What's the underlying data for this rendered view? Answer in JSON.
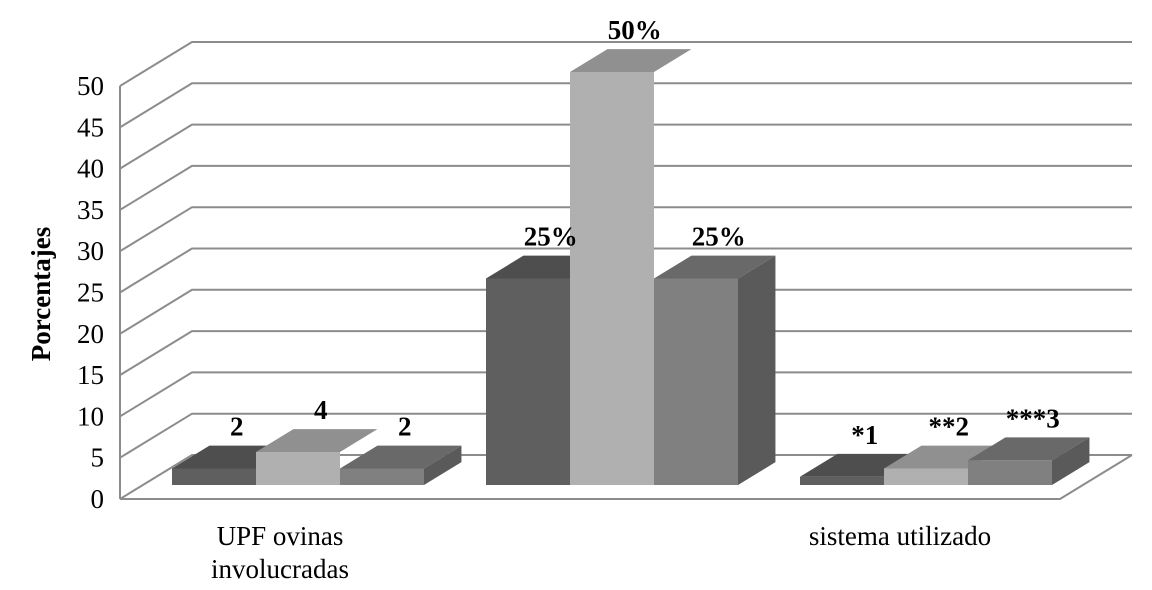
{
  "chart_data": {
    "type": "bar",
    "three_d": true,
    "ylabel": "Porcentajes",
    "xlabel": "",
    "title": "",
    "ylim": [
      0,
      50
    ],
    "ytick_step": 5,
    "yticks": [
      "0",
      "5",
      "10",
      "15",
      "20",
      "25",
      "30",
      "35",
      "40",
      "45",
      "50"
    ],
    "categories": [
      [
        "UPF ovinas",
        "involucradas"
      ],
      [
        ""
      ],
      [
        "sistema utilizado"
      ]
    ],
    "series": [
      {
        "color": "#5f5f5f",
        "values": [
          2,
          25,
          1
        ],
        "labels": [
          "2",
          "25%",
          "*1"
        ]
      },
      {
        "color": "#b0b0b0",
        "values": [
          4,
          50,
          2
        ],
        "labels": [
          "4",
          "50%",
          "**2"
        ]
      },
      {
        "color": "#808080",
        "values": [
          2,
          25,
          3
        ],
        "labels": [
          "2",
          "25%",
          "***3"
        ]
      }
    ],
    "grid": true,
    "legend": "none"
  }
}
